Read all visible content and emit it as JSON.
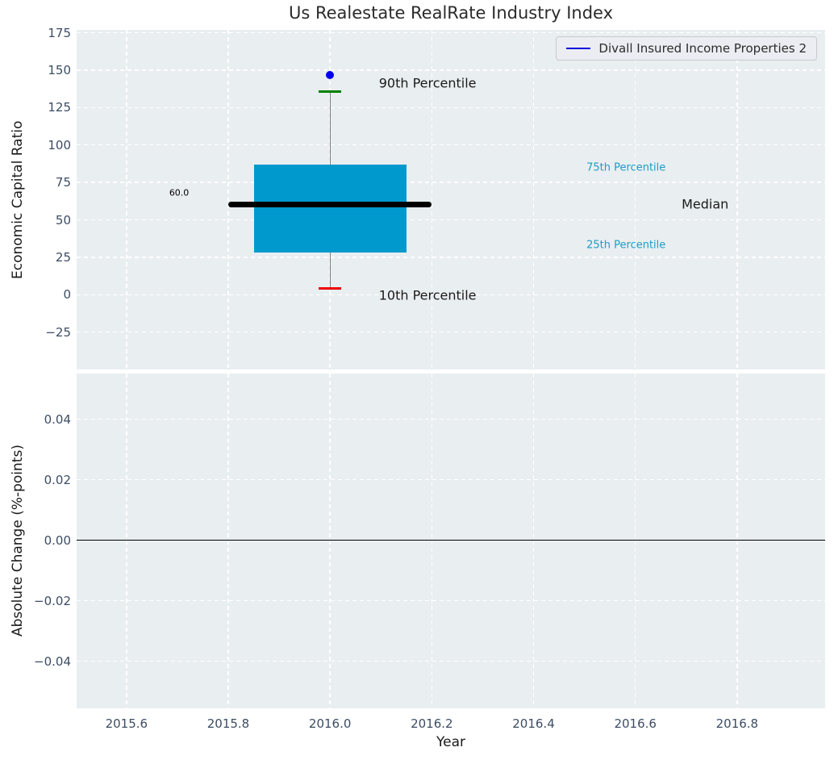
{
  "title": "Us Realestate RealRate Industry Index",
  "legend": {
    "label": "Divall Insured Income Properties 2",
    "line_color": "#0000dd"
  },
  "colors": {
    "axes_bg": "#e9eef0",
    "grid": "#ffffff",
    "tick_label": "#3d4c63",
    "box_fill": "#0099cd",
    "median_line": "#000000",
    "whisker": "#808080",
    "cap_90th": "#008000",
    "cap_10th": "#ee0000",
    "point": "#0000ee",
    "zero_line": "#000000",
    "annotation_dark": "#1a1a1a",
    "annotation_cyan": "#1e9cc9"
  },
  "chart_data": [
    {
      "type": "boxplot",
      "title": "Us Realestate RealRate Industry Index",
      "ylabel": "Economic Capital Ratio",
      "xlim": [
        2015.502,
        2016.973
      ],
      "ylim": [
        -50,
        177
      ],
      "grid": true,
      "legend_position": "upper right",
      "xticks": {
        "values": [
          2015.6,
          2015.8,
          2016.0,
          2016.2,
          2016.4,
          2016.6,
          2016.8
        ],
        "labels": [
          "2015.6",
          "2015.8",
          "2016.0",
          "2016.2",
          "2016.4",
          "2016.6",
          "2016.8"
        ]
      },
      "yticks": {
        "values": [
          175,
          150,
          125,
          100,
          75,
          50,
          25,
          0,
          -25
        ],
        "labels": [
          "175",
          "150",
          "125",
          "100",
          "75",
          "50",
          "25",
          "0",
          "−25"
        ]
      },
      "box": {
        "x": 2016.0,
        "box_width": 0.3,
        "p90": 136,
        "q3": 87,
        "median": 60,
        "q1": 28,
        "p10": 4,
        "median_label": "60.0",
        "median_line_halfwidth": 0.2,
        "cap_halfwidth": 0.022
      },
      "series": [
        {
          "name": "Divall Insured Income Properties 2",
          "x": [
            2016.0
          ],
          "y": [
            147
          ],
          "marker": "circle"
        }
      ],
      "annotations": [
        {
          "id": "90th-percentile",
          "text": "90th Percentile",
          "x": 2016.096,
          "y": 141.5,
          "color": "#1a1a1a",
          "size": 16
        },
        {
          "id": "10th-percentile",
          "text": "10th Percentile",
          "x": 2016.096,
          "y": -0.5,
          "color": "#1a1a1a",
          "size": 16
        },
        {
          "id": "75th-percentile",
          "text": "75th Percentile",
          "x": 2016.504,
          "y": 85,
          "color": "#1e9cc9",
          "size": 13
        },
        {
          "id": "25th-percentile",
          "text": "25th Percentile",
          "x": 2016.504,
          "y": 33,
          "color": "#1e9cc9",
          "size": 13
        },
        {
          "id": "median",
          "text": "Median",
          "x": 2016.691,
          "y": 60.5,
          "color": "#1a1a1a",
          "size": 16
        },
        {
          "id": "median-value",
          "text": "60.0",
          "x": 2015.684,
          "y": 68,
          "color": "#000000",
          "size": 11
        }
      ]
    },
    {
      "type": "line",
      "ylabel": "Absolute Change (%-points)",
      "xlabel": "Year",
      "xlim": [
        2015.502,
        2016.973
      ],
      "ylim": [
        -0.0556,
        0.0551
      ],
      "grid": true,
      "xticks": {
        "values": [
          2015.6,
          2015.8,
          2016.0,
          2016.2,
          2016.4,
          2016.6,
          2016.8
        ],
        "labels": [
          "2015.6",
          "2015.8",
          "2016.0",
          "2016.2",
          "2016.4",
          "2016.6",
          "2016.8"
        ]
      },
      "yticks": {
        "values": [
          0.04,
          0.02,
          0.0,
          -0.02,
          -0.04
        ],
        "labels": [
          "0.04",
          "0.02",
          "0.00",
          "−0.02",
          "−0.04"
        ]
      },
      "zero_line": 0.0,
      "series": []
    }
  ]
}
